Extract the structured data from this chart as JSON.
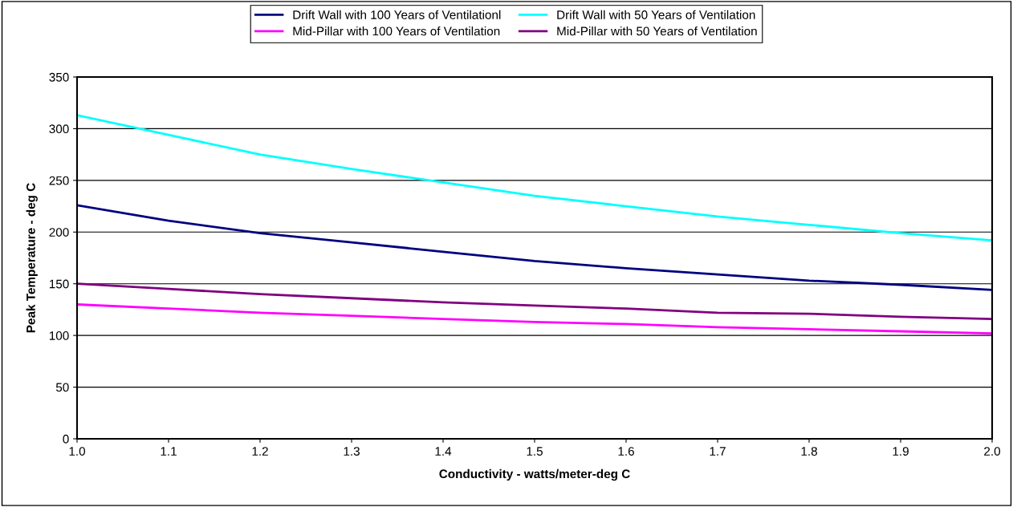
{
  "chart_data": {
    "type": "line",
    "xlabel": "Conductivity - watts/meter-deg C",
    "ylabel": "Peak Temperature - deg C",
    "x": [
      1.0,
      1.1,
      1.2,
      1.3,
      1.4,
      1.5,
      1.6,
      1.7,
      1.8,
      1.9,
      2.0
    ],
    "series": [
      {
        "name": "Drift Wall with 100 Years of Ventilationl",
        "color": "#000080",
        "values": [
          226,
          211,
          199,
          190,
          181,
          172,
          165,
          159,
          153,
          149,
          144
        ]
      },
      {
        "name": "Drift Wall with 50 Years of Ventilation",
        "color": "#00ffff",
        "values": [
          313,
          294,
          275,
          261,
          248,
          235,
          225,
          215,
          207,
          199,
          192
        ]
      },
      {
        "name": "Mid-Pillar with 100 Years of Ventilation",
        "color": "#ff00ff",
        "values": [
          130,
          126,
          122,
          119,
          116,
          113,
          111,
          108,
          106,
          104,
          102
        ]
      },
      {
        "name": "Mid-Pillar with 50 Years of Ventilation",
        "color": "#800080",
        "values": [
          150,
          145,
          140,
          136,
          132,
          129,
          126,
          122,
          121,
          118,
          116
        ]
      }
    ],
    "xlim": [
      1.0,
      2.0
    ],
    "ylim": [
      0,
      350
    ],
    "xticks": [
      {
        "value": 1.0,
        "label": "1.0"
      },
      1.1,
      1.2,
      1.3,
      1.4,
      1.5,
      1.6,
      1.7,
      1.8,
      1.9,
      {
        "value": 2.0,
        "label": "2.0"
      }
    ],
    "yticks": [
      0,
      50,
      100,
      150,
      200,
      250,
      300,
      350
    ],
    "grid": "y",
    "legend": "top",
    "marker": "none",
    "line_style": "solid"
  }
}
